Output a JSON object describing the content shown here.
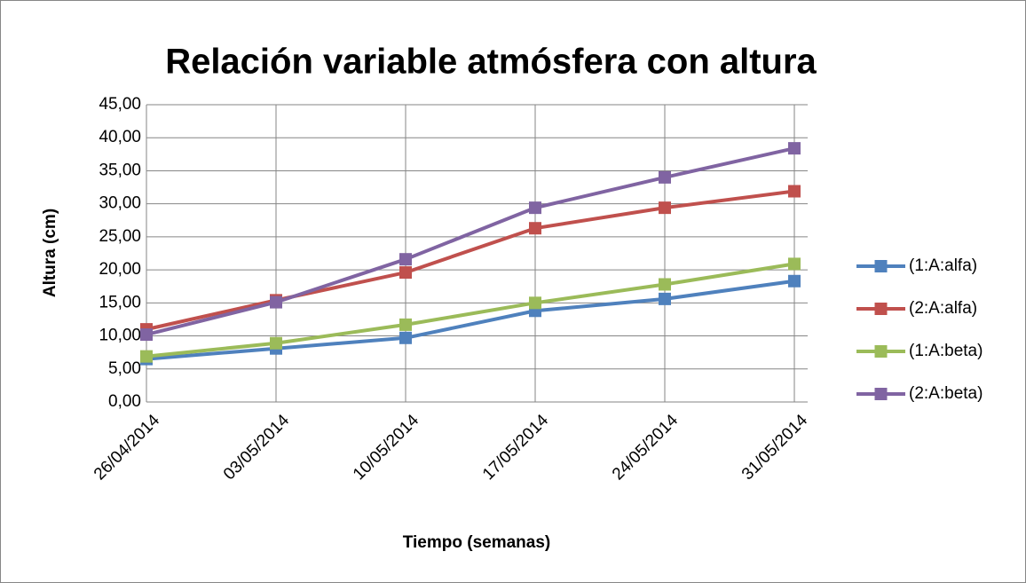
{
  "chart_data": {
    "type": "line",
    "title": "Relación variable atmósfera con altura",
    "x_label": "Tiempo (semanas)",
    "y_label": "Altura (cm)",
    "categories": [
      "26/04/2014",
      "03/05/2014",
      "10/05/2014",
      "17/05/2014",
      "24/05/2014",
      "31/05/2014"
    ],
    "series": [
      {
        "name": "(1:A:alfa)",
        "color": "#4f81bd",
        "values": [
          6.5,
          8.1,
          9.7,
          13.8,
          15.6,
          18.3
        ]
      },
      {
        "name": "(2:A:alfa)",
        "color": "#c0504d",
        "values": [
          11.0,
          15.4,
          19.6,
          26.3,
          29.4,
          31.9
        ]
      },
      {
        "name": "(1:A:beta)",
        "color": "#9bbb59",
        "values": [
          6.9,
          8.9,
          11.7,
          15.0,
          17.8,
          20.9
        ]
      },
      {
        "name": "(2:A:beta)",
        "color": "#8064a2",
        "values": [
          10.2,
          15.1,
          21.6,
          29.4,
          34.0,
          38.4
        ]
      }
    ],
    "ylim": [
      0,
      45
    ],
    "yticks": [
      {
        "value": 0,
        "label": "0,00"
      },
      {
        "value": 5,
        "label": "5,00"
      },
      {
        "value": 10,
        "label": "10,00"
      },
      {
        "value": 15,
        "label": "15,00"
      },
      {
        "value": 20,
        "label": "20,00"
      },
      {
        "value": 25,
        "label": "25,00"
      },
      {
        "value": 30,
        "label": "30,00"
      },
      {
        "value": 35,
        "label": "35,00"
      },
      {
        "value": 40,
        "label": "40,00"
      },
      {
        "value": 45,
        "label": "45,00"
      }
    ],
    "grid": true,
    "legend": "right"
  }
}
